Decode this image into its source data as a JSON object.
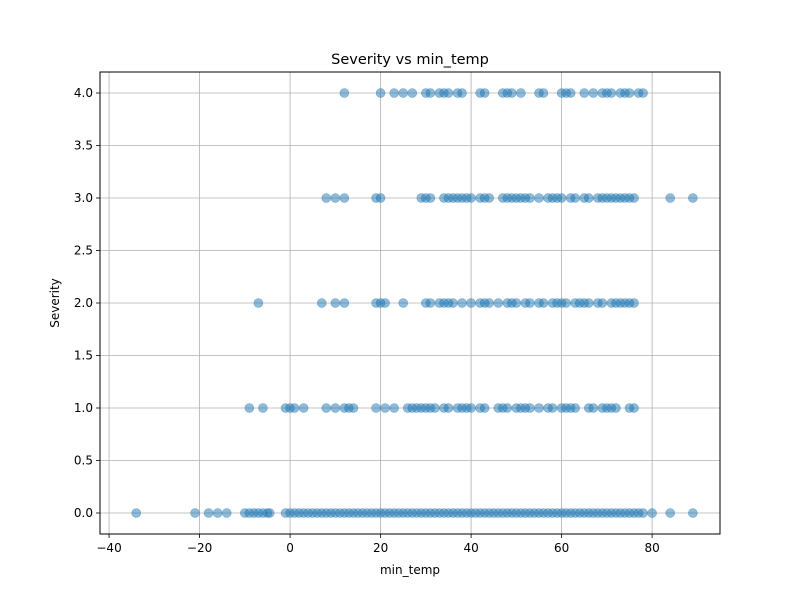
{
  "chart_data": {
    "type": "scatter",
    "title": "Severity vs min_temp",
    "xlabel": "min_temp",
    "ylabel": "Severity",
    "xlim": [
      -42,
      95
    ],
    "ylim": [
      -0.2,
      4.2
    ],
    "xticks": [
      -40,
      -20,
      0,
      20,
      40,
      60,
      80
    ],
    "xtick_labels": [
      "−40",
      "−20",
      "0",
      "20",
      "40",
      "60",
      "80"
    ],
    "yticks": [
      0.0,
      0.5,
      1.0,
      1.5,
      2.0,
      2.5,
      3.0,
      3.5,
      4.0
    ],
    "ytick_labels": [
      "0.0",
      "0.5",
      "1.0",
      "1.5",
      "2.0",
      "2.5",
      "3.0",
      "3.5",
      "4.0"
    ],
    "grid": true,
    "marker_color": "#1f77b4",
    "marker_alpha": 0.5,
    "series": [
      {
        "x": [
          -34,
          -21,
          -18,
          -16,
          -14,
          -10,
          -9,
          -8,
          -7,
          -6,
          -5,
          -4.5,
          -1,
          0,
          1,
          2,
          3,
          4,
          5,
          6,
          7,
          8,
          9,
          10,
          11,
          12,
          13,
          14,
          15,
          16,
          17,
          18,
          19,
          20,
          21,
          22,
          23,
          24,
          25,
          26,
          27,
          28,
          29,
          30,
          31,
          32,
          33,
          34,
          35,
          36,
          37,
          38,
          39,
          40,
          41,
          42,
          43,
          44,
          45,
          46,
          47,
          48,
          49,
          50,
          51,
          52,
          53,
          54,
          55,
          56,
          57,
          58,
          59,
          60,
          61,
          62,
          63,
          64,
          65,
          66,
          67,
          68,
          69,
          70,
          71,
          72,
          73,
          74,
          75,
          76,
          77,
          78,
          80,
          84,
          89,
          -9,
          -6,
          -1,
          0,
          1,
          3,
          8,
          10,
          12,
          13,
          14,
          19,
          21,
          23,
          26,
          27,
          28,
          29,
          30,
          31,
          32,
          34,
          35,
          37,
          38,
          39,
          40,
          42,
          43,
          46,
          47,
          48,
          50,
          51,
          52,
          53,
          55,
          57,
          58,
          60,
          61,
          62,
          63,
          66,
          67,
          69,
          70,
          71,
          72,
          75,
          76,
          -7,
          7,
          10,
          12,
          19,
          20,
          21,
          25,
          30,
          31,
          33,
          34,
          35,
          36,
          38,
          40,
          42,
          43,
          44,
          46,
          48,
          49,
          50,
          52,
          53,
          55,
          56,
          58,
          59,
          60,
          61,
          63,
          64,
          65,
          66,
          68,
          69,
          71,
          72,
          73,
          74,
          75,
          76,
          8,
          10,
          12,
          19,
          20,
          29,
          30,
          31,
          34,
          35,
          36,
          37,
          38,
          39,
          40,
          42,
          43,
          44,
          47,
          48,
          49,
          50,
          51,
          52,
          53,
          55,
          57,
          58,
          59,
          60,
          62,
          63,
          65,
          66,
          68,
          69,
          70,
          71,
          72,
          73,
          74,
          75,
          76,
          84,
          89,
          12,
          20,
          23,
          25,
          27,
          30,
          31,
          33,
          34,
          35,
          37,
          38,
          42,
          43,
          47,
          48,
          49,
          51,
          55,
          56,
          60,
          61,
          62,
          65,
          67,
          69,
          70,
          71,
          73,
          74,
          75,
          77,
          78
        ],
        "y": [
          0,
          0,
          0,
          0,
          0,
          0,
          0,
          0,
          0,
          0,
          0,
          0,
          0,
          0,
          0,
          0,
          0,
          0,
          0,
          0,
          0,
          0,
          0,
          0,
          0,
          0,
          0,
          0,
          0,
          0,
          0,
          0,
          0,
          0,
          0,
          0,
          0,
          0,
          0,
          0,
          0,
          0,
          0,
          0,
          0,
          0,
          0,
          0,
          0,
          0,
          0,
          0,
          0,
          0,
          0,
          0,
          0,
          0,
          0,
          0,
          0,
          0,
          0,
          0,
          0,
          0,
          0,
          0,
          0,
          0,
          0,
          0,
          0,
          0,
          0,
          0,
          0,
          0,
          0,
          0,
          0,
          0,
          0,
          0,
          0,
          0,
          0,
          0,
          0,
          0,
          0,
          0,
          0,
          0,
          0,
          1,
          1,
          1,
          1,
          1,
          1,
          1,
          1,
          1,
          1,
          1,
          1,
          1,
          1,
          1,
          1,
          1,
          1,
          1,
          1,
          1,
          1,
          1,
          1,
          1,
          1,
          1,
          1,
          1,
          1,
          1,
          1,
          1,
          1,
          1,
          1,
          1,
          1,
          1,
          1,
          1,
          1,
          1,
          1,
          1,
          1,
          1,
          1,
          1,
          1,
          1,
          2,
          2,
          2,
          2,
          2,
          2,
          2,
          2,
          2,
          2,
          2,
          2,
          2,
          2,
          2,
          2,
          2,
          2,
          2,
          2,
          2,
          2,
          2,
          2,
          2,
          2,
          2,
          2,
          2,
          2,
          2,
          2,
          2,
          2,
          2,
          2,
          2,
          2,
          2,
          2,
          2,
          2,
          2,
          3,
          3,
          3,
          3,
          3,
          3,
          3,
          3,
          3,
          3,
          3,
          3,
          3,
          3,
          3,
          3,
          3,
          3,
          3,
          3,
          3,
          3,
          3,
          3,
          3,
          3,
          3,
          3,
          3,
          3,
          3,
          3,
          3,
          3,
          3,
          3,
          3,
          3,
          3,
          3,
          3,
          3,
          3,
          3,
          3,
          4,
          4,
          4,
          4,
          4,
          4,
          4,
          4,
          4,
          4,
          4,
          4,
          4,
          4,
          4,
          4,
          4,
          4,
          4,
          4,
          4,
          4,
          4,
          4,
          4,
          4,
          4,
          4,
          4,
          4,
          4,
          4,
          4
        ]
      }
    ]
  }
}
